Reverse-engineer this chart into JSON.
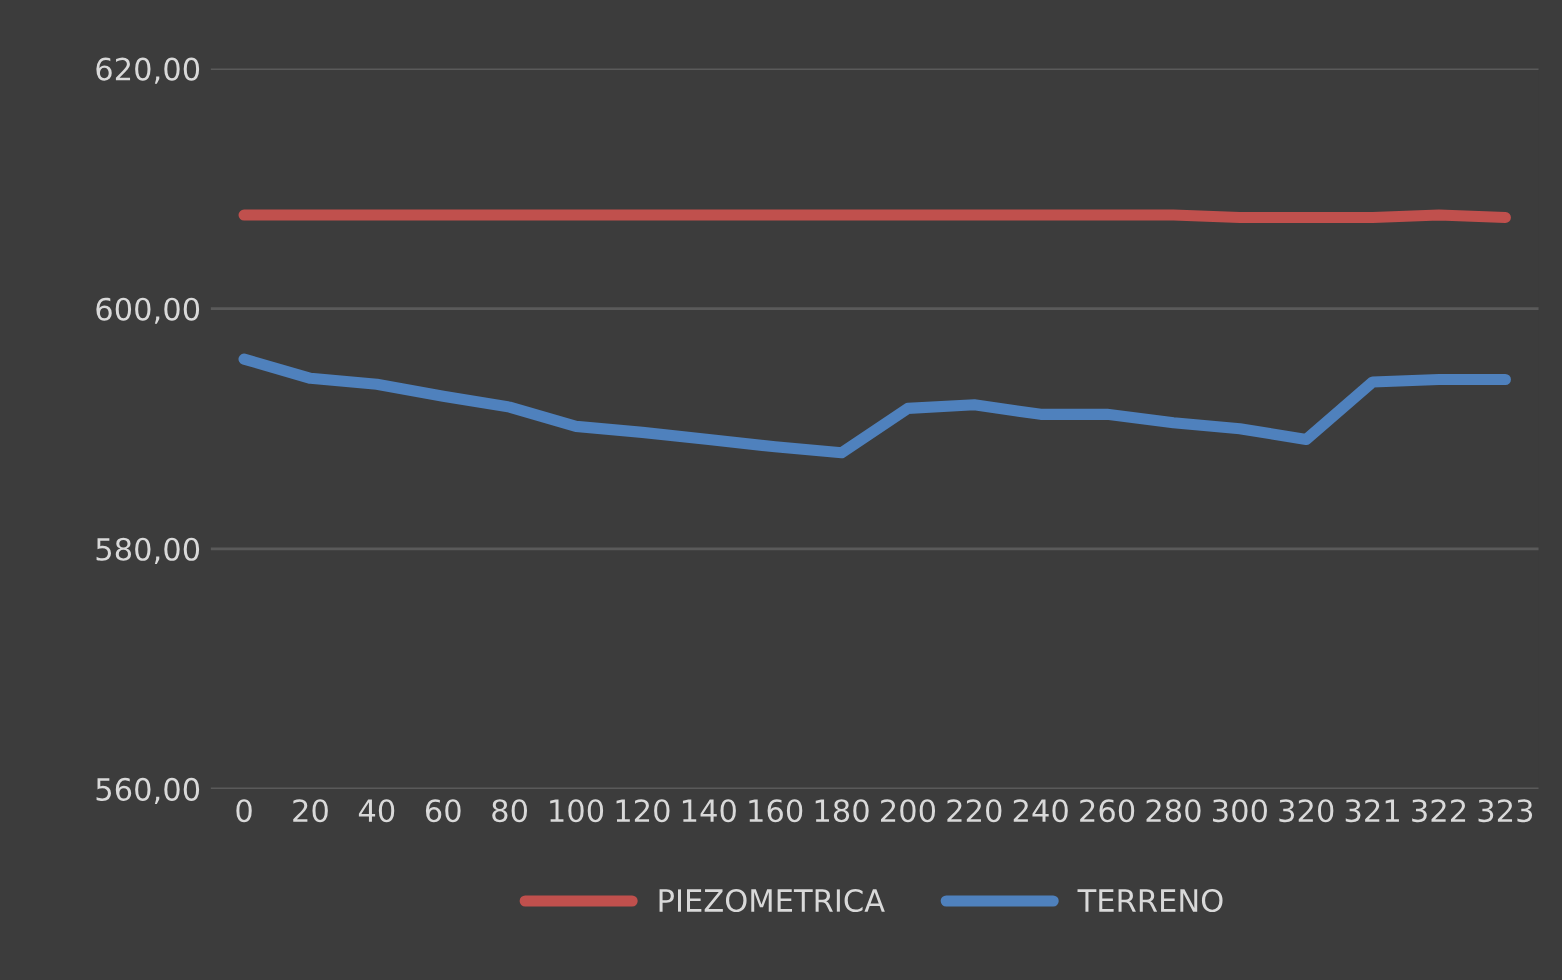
{
  "chart_data": {
    "type": "line",
    "categories": [
      "0",
      "20",
      "40",
      "60",
      "80",
      "100",
      "120",
      "140",
      "160",
      "180",
      "200",
      "220",
      "240",
      "260",
      "280",
      "300",
      "320",
      "321",
      "322",
      "323"
    ],
    "series": [
      {
        "name": "PIEZOMETRICA",
        "color": "#c0504d",
        "values": [
          607.8,
          607.8,
          607.8,
          607.8,
          607.8,
          607.8,
          607.8,
          607.8,
          607.8,
          607.8,
          607.8,
          607.8,
          607.8,
          607.8,
          607.8,
          607.6,
          607.6,
          607.6,
          607.8,
          607.6
        ]
      },
      {
        "name": "TERRENO",
        "color": "#4f81bd",
        "values": [
          595.8,
          594.2,
          593.7,
          592.7,
          591.8,
          590.2,
          589.7,
          589.1,
          588.5,
          588.0,
          591.7,
          592.0,
          591.2,
          591.2,
          590.5,
          590.0,
          589.1,
          593.9,
          594.1,
          594.1
        ]
      }
    ],
    "ylim": [
      560,
      620
    ],
    "yticks": [
      {
        "value": 560,
        "label": "560,00"
      },
      {
        "value": 580,
        "label": "580,00"
      },
      {
        "value": 600,
        "label": "600,00"
      },
      {
        "value": 620,
        "label": "620,00"
      }
    ],
    "grid": "y",
    "legend": "bottom",
    "marker": "none",
    "line_style": "solid"
  }
}
